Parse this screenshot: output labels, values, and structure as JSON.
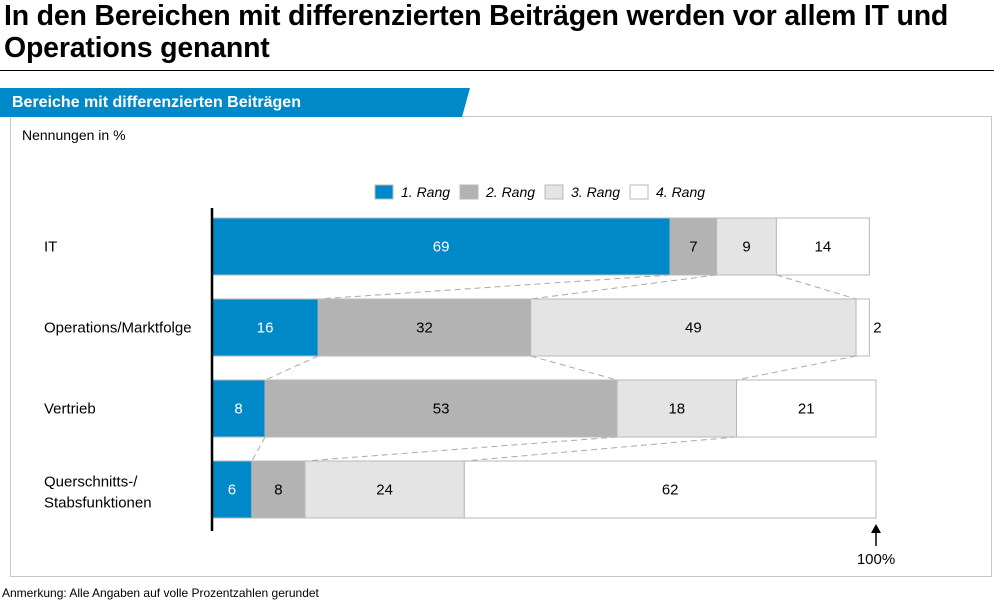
{
  "headline": "In den Bereichen mit differenzierten Beiträgen werden vor allem IT und Operations genannt",
  "panel": {
    "banner": "Bereiche mit differenzierten Beiträgen",
    "unit_label": "Nennungen in %"
  },
  "footnote": "Anmerkung: Alle Angaben auf volle Prozentzahlen gerundet",
  "colors": {
    "accent": "#0089c8",
    "rank1": "#0089c8",
    "rank2": "#b3b3b3",
    "rank3": "#e4e4e4",
    "rank4": "#ffffff"
  },
  "chart_data": {
    "type": "bar",
    "orientation": "horizontal",
    "stacked": true,
    "categories": [
      "IT",
      "Operations/Marktfolge",
      "Vertrieb",
      "Querschnitts-/ Stabsfunktionen"
    ],
    "series": [
      {
        "name": "1. Rang",
        "values": [
          69,
          16,
          8,
          6
        ]
      },
      {
        "name": "2. Rang",
        "values": [
          7,
          32,
          53,
          8
        ]
      },
      {
        "name": "3. Rang",
        "values": [
          9,
          49,
          18,
          24
        ]
      },
      {
        "name": "4. Rang",
        "values": [
          14,
          2,
          21,
          62
        ]
      }
    ],
    "xlim": [
      0,
      100
    ],
    "legend_position": "top",
    "total_marker": "100%"
  }
}
